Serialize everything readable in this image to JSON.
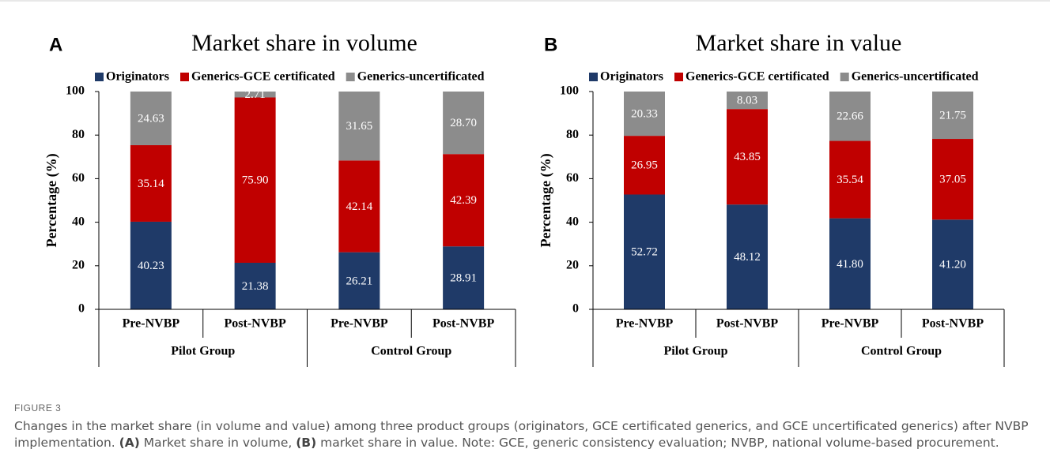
{
  "figure": {
    "label": "FIGURE 3",
    "caption": [
      "Changes in the market share (in volume and value) among three product groups (originators, GCE certificated generics, and GCE uncertificated generics) after NVBP implementation. ",
      "(A)",
      " Market share in volume, ",
      "(B)",
      " market share in value. Note: GCE, generic consistency evaluation; NVBP, national volume-based procurement."
    ]
  },
  "chart_data": [
    {
      "type": "stacked_bar",
      "panel": "A",
      "title": "Market share in volume",
      "y_label": "Percentage (%)",
      "categories": [
        "Pre-NVBP",
        "Post-NVBP",
        "Pre-NVBP",
        "Post-NVBP"
      ],
      "groups": [
        "Pilot Group",
        "Control Group"
      ],
      "series": [
        {
          "name": "Originators",
          "color": "#1f3a68",
          "values": [
            40.23,
            21.38,
            26.21,
            28.91
          ],
          "value_labels": [
            "40.23",
            "21.38",
            "26.21",
            "28.91"
          ]
        },
        {
          "name": "Generics-GCE certificated",
          "color": "#c00000",
          "values": [
            35.14,
            75.9,
            42.14,
            42.39
          ],
          "value_labels": [
            "35.14",
            "75.90",
            "42.14",
            "42.39"
          ]
        },
        {
          "name": "Generics-uncertificated",
          "color": "#8c8c8c",
          "values": [
            24.63,
            2.71,
            31.65,
            28.7
          ],
          "value_labels": [
            "24.63",
            "2.71",
            "31.65",
            "28.70"
          ]
        }
      ],
      "ylim": [
        0,
        100
      ],
      "yticks": [
        0,
        20,
        40,
        60,
        80,
        100
      ]
    },
    {
      "type": "stacked_bar",
      "panel": "B",
      "title": "Market share in value",
      "y_label": "Percentage (%)",
      "categories": [
        "Pre-NVBP",
        "Post-NVBP",
        "Pre-NVBP",
        "Post-NVBP"
      ],
      "groups": [
        "Pilot Group",
        "Control Group"
      ],
      "series": [
        {
          "name": "Originators",
          "color": "#1f3a68",
          "values": [
            52.72,
            48.12,
            41.8,
            41.2
          ],
          "value_labels": [
            "52.72",
            "48.12",
            "41.80",
            "41.20"
          ]
        },
        {
          "name": "Generics-GCE certificated",
          "color": "#c00000",
          "values": [
            26.95,
            43.85,
            35.54,
            37.05
          ],
          "value_labels": [
            "26.95",
            "43.85",
            "35.54",
            "37.05"
          ]
        },
        {
          "name": "Generics-uncertificated",
          "color": "#8c8c8c",
          "values": [
            20.33,
            8.03,
            22.66,
            21.75
          ],
          "value_labels": [
            "20.33",
            "8.03",
            "22.66",
            "21.75"
          ]
        }
      ],
      "ylim": [
        0,
        100
      ],
      "yticks": [
        0,
        20,
        40,
        60,
        80,
        100
      ]
    }
  ]
}
